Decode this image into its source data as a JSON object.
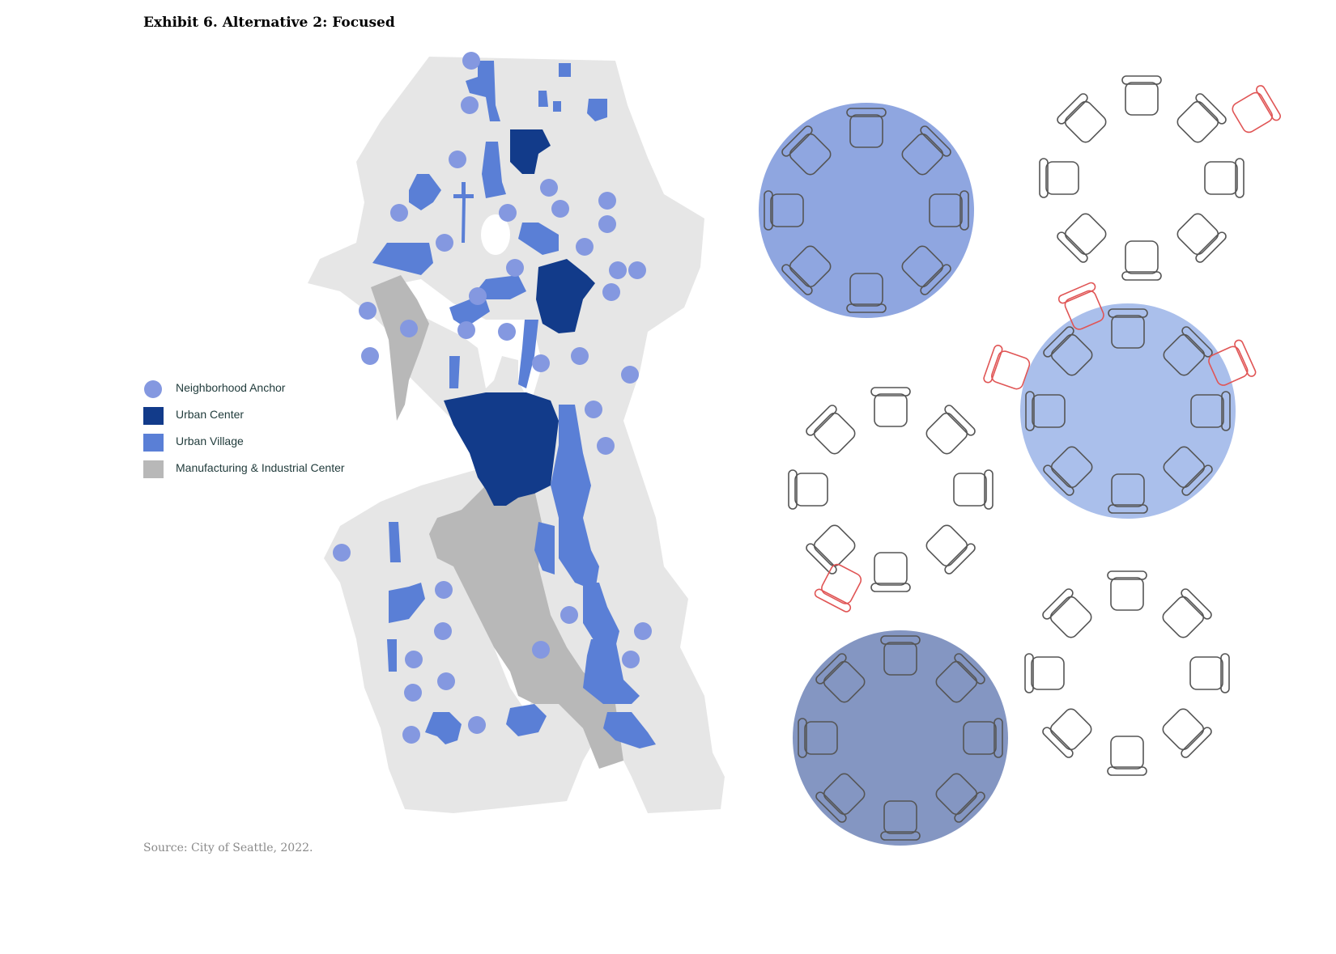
{
  "title": "Exhibit 6. Alternative 2: Focused",
  "legend": [
    {
      "label": "Neighborhood Anchor",
      "color": "#8498e0",
      "shape": "circle"
    },
    {
      "label": "Urban Center",
      "color": "#123b8a",
      "shape": "square"
    },
    {
      "label": "Urban Village",
      "color": "#5a7fd6",
      "shape": "square"
    },
    {
      "label": "Manufacturing & Industrial Center",
      "color": "#b8b8b8",
      "shape": "square"
    }
  ],
  "source": "Source: City of Seattle, 2022.",
  "colors": {
    "land": "#e6e6e6",
    "water": "#ffffff",
    "anchor": "#8498e0",
    "urban_center": "#123b8a",
    "urban_village": "#5a7fd6",
    "industrial": "#b8b8b8",
    "table_fill_1": "#8fa6e0",
    "table_fill_2": "#aabfeb",
    "table_fill_3": "#8496c2",
    "chair_stroke": "#555555",
    "chair_highlight": "#e05555"
  },
  "overlay": {
    "tables": [
      {
        "id": "table-1",
        "filled": true,
        "fill": "#8fa6e0"
      },
      {
        "id": "table-2",
        "filled": false
      },
      {
        "id": "table-3",
        "filled": true,
        "fill": "#aabfeb"
      },
      {
        "id": "table-4",
        "filled": false
      },
      {
        "id": "table-5",
        "filled": true,
        "fill": "#8496c2"
      },
      {
        "id": "table-6",
        "filled": false
      }
    ]
  }
}
